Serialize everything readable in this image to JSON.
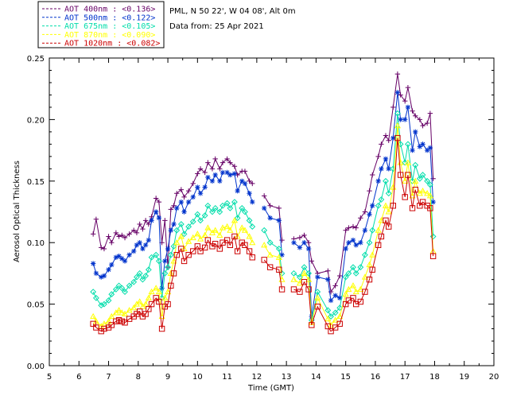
{
  "chart_data": {
    "type": "line",
    "xlabel": "Time (GMT)",
    "ylabel": "Aerosol Optical Thickness",
    "xlim": [
      5,
      20
    ],
    "ylim": [
      0.0,
      0.25
    ],
    "xticks": [
      "5",
      "6",
      "7",
      "8",
      "9",
      "10",
      "11",
      "12",
      "13",
      "14",
      "15",
      "16",
      "17",
      "18",
      "19",
      "20"
    ],
    "yticks": [
      "0.00",
      "0.05",
      "0.10",
      "0.15",
      "0.20",
      "0.25"
    ],
    "site_info": "PML, N 50 22', W 04 08', Alt 0m",
    "date_info": "Data from: 25 Apr 2021",
    "series": [
      {
        "name": "AOT  400nm",
        "legend": "AOT  400nm : <0.136>",
        "color": "#660066",
        "marker": "plus",
        "x": [
          6.48,
          6.58,
          6.75,
          6.85,
          7.0,
          7.1,
          7.25,
          7.35,
          7.45,
          7.55,
          7.7,
          7.85,
          7.95,
          8.05,
          8.15,
          8.25,
          8.35,
          8.45,
          8.6,
          8.7,
          8.8,
          8.9,
          9.0,
          9.1,
          9.2,
          9.3,
          9.45,
          9.55,
          9.7,
          9.85,
          10.0,
          10.1,
          10.25,
          10.35,
          10.5,
          10.6,
          10.75,
          10.85,
          11.0,
          11.1,
          11.25,
          11.35,
          11.5,
          11.6,
          11.75,
          11.85,
          12.25,
          12.45,
          12.75,
          12.85,
          13.25,
          13.45,
          13.6,
          13.75,
          13.85,
          14.05,
          14.4,
          14.5,
          14.65,
          14.8,
          15.0,
          15.1,
          15.25,
          15.35,
          15.5,
          15.65,
          15.8,
          15.9,
          16.1,
          16.2,
          16.35,
          16.45,
          16.6,
          16.75,
          16.85,
          17.0,
          17.1,
          17.25,
          17.35,
          17.5,
          17.6,
          17.75,
          17.85,
          17.95
        ],
        "y": [
          0.107,
          0.119,
          0.096,
          0.095,
          0.105,
          0.1,
          0.108,
          0.105,
          0.106,
          0.104,
          0.107,
          0.11,
          0.108,
          0.115,
          0.111,
          0.118,
          0.115,
          0.121,
          0.136,
          0.133,
          0.1,
          0.118,
          0.08,
          0.127,
          0.13,
          0.14,
          0.143,
          0.137,
          0.142,
          0.148,
          0.156,
          0.16,
          0.157,
          0.165,
          0.16,
          0.168,
          0.16,
          0.165,
          0.168,
          0.165,
          0.162,
          0.155,
          0.158,
          0.158,
          0.15,
          0.148,
          0.138,
          0.13,
          0.128,
          0.102,
          0.103,
          0.104,
          0.106,
          0.1,
          0.085,
          0.075,
          0.077,
          0.06,
          0.065,
          0.073,
          0.11,
          0.112,
          0.113,
          0.112,
          0.12,
          0.125,
          0.142,
          0.155,
          0.17,
          0.18,
          0.187,
          0.183,
          0.21,
          0.237,
          0.22,
          0.215,
          0.226,
          0.207,
          0.203,
          0.2,
          0.195,
          0.197,
          0.205,
          0.152
        ]
      },
      {
        "name": "AOT  500nm",
        "legend": "AOT  500nm : <0.122>",
        "color": "#0033cc",
        "marker": "star",
        "x": [
          6.48,
          6.58,
          6.75,
          6.85,
          7.0,
          7.1,
          7.25,
          7.35,
          7.45,
          7.55,
          7.7,
          7.85,
          7.95,
          8.05,
          8.15,
          8.25,
          8.35,
          8.45,
          8.6,
          8.7,
          8.8,
          8.9,
          9.0,
          9.1,
          9.2,
          9.3,
          9.45,
          9.55,
          9.7,
          9.85,
          10.0,
          10.1,
          10.25,
          10.35,
          10.5,
          10.6,
          10.75,
          10.85,
          11.0,
          11.1,
          11.25,
          11.35,
          11.5,
          11.6,
          11.75,
          11.85,
          12.25,
          12.45,
          12.75,
          12.85,
          13.25,
          13.45,
          13.6,
          13.75,
          13.85,
          14.05,
          14.4,
          14.5,
          14.65,
          14.8,
          15.0,
          15.1,
          15.25,
          15.35,
          15.5,
          15.65,
          15.8,
          15.9,
          16.1,
          16.2,
          16.35,
          16.45,
          16.6,
          16.75,
          16.85,
          17.0,
          17.1,
          17.25,
          17.35,
          17.5,
          17.6,
          17.75,
          17.85,
          17.95
        ],
        "y": [
          0.083,
          0.075,
          0.072,
          0.073,
          0.078,
          0.082,
          0.088,
          0.089,
          0.087,
          0.085,
          0.09,
          0.093,
          0.098,
          0.1,
          0.095,
          0.098,
          0.102,
          0.118,
          0.125,
          0.12,
          0.063,
          0.085,
          0.095,
          0.11,
          0.115,
          0.128,
          0.133,
          0.125,
          0.133,
          0.137,
          0.145,
          0.14,
          0.145,
          0.153,
          0.15,
          0.155,
          0.15,
          0.157,
          0.157,
          0.155,
          0.156,
          0.142,
          0.15,
          0.148,
          0.14,
          0.133,
          0.128,
          0.12,
          0.118,
          0.09,
          0.1,
          0.096,
          0.1,
          0.095,
          0.04,
          0.072,
          0.07,
          0.053,
          0.057,
          0.055,
          0.095,
          0.1,
          0.102,
          0.098,
          0.1,
          0.11,
          0.123,
          0.13,
          0.15,
          0.16,
          0.168,
          0.16,
          0.185,
          0.222,
          0.2,
          0.2,
          0.21,
          0.175,
          0.19,
          0.178,
          0.18,
          0.175,
          0.177,
          0.133
        ]
      },
      {
        "name": "AOT  675nm",
        "legend": "AOT  675nm : <0.105>",
        "color": "#00ddaa",
        "marker": "diamond",
        "x": [
          6.48,
          6.58,
          6.75,
          6.85,
          7.0,
          7.1,
          7.25,
          7.35,
          7.45,
          7.55,
          7.7,
          7.85,
          7.95,
          8.05,
          8.15,
          8.25,
          8.35,
          8.45,
          8.6,
          8.7,
          8.8,
          8.9,
          9.0,
          9.1,
          9.2,
          9.3,
          9.45,
          9.55,
          9.7,
          9.85,
          10.0,
          10.1,
          10.25,
          10.35,
          10.5,
          10.6,
          10.75,
          10.85,
          11.0,
          11.1,
          11.25,
          11.35,
          11.5,
          11.6,
          11.75,
          11.85,
          12.25,
          12.45,
          12.75,
          12.85,
          13.25,
          13.45,
          13.6,
          13.75,
          13.85,
          14.05,
          14.4,
          14.5,
          14.65,
          14.8,
          15.0,
          15.1,
          15.25,
          15.35,
          15.5,
          15.65,
          15.8,
          15.9,
          16.1,
          16.2,
          16.35,
          16.45,
          16.6,
          16.75,
          16.85,
          17.0,
          17.1,
          17.25,
          17.35,
          17.5,
          17.6,
          17.75,
          17.85,
          17.95
        ],
        "y": [
          0.06,
          0.055,
          0.049,
          0.05,
          0.053,
          0.058,
          0.062,
          0.065,
          0.063,
          0.06,
          0.065,
          0.068,
          0.072,
          0.075,
          0.07,
          0.073,
          0.078,
          0.088,
          0.09,
          0.085,
          0.055,
          0.075,
          0.08,
          0.09,
          0.097,
          0.11,
          0.115,
          0.107,
          0.113,
          0.117,
          0.123,
          0.118,
          0.122,
          0.13,
          0.125,
          0.128,
          0.125,
          0.13,
          0.132,
          0.128,
          0.133,
          0.12,
          0.128,
          0.125,
          0.118,
          0.113,
          0.11,
          0.1,
          0.095,
          0.075,
          0.075,
          0.072,
          0.08,
          0.075,
          0.037,
          0.06,
          0.045,
          0.04,
          0.043,
          0.047,
          0.072,
          0.075,
          0.08,
          0.075,
          0.08,
          0.09,
          0.1,
          0.11,
          0.13,
          0.135,
          0.15,
          0.14,
          0.16,
          0.205,
          0.18,
          0.165,
          0.18,
          0.15,
          0.163,
          0.152,
          0.155,
          0.15,
          0.147,
          0.105
        ]
      },
      {
        "name": "AOT  870nm",
        "legend": "AOT  870nm : <0.090>",
        "color": "#ffff00",
        "marker": "triangle",
        "x": [
          6.48,
          6.58,
          6.75,
          6.85,
          7.0,
          7.1,
          7.25,
          7.35,
          7.45,
          7.55,
          7.7,
          7.85,
          7.95,
          8.05,
          8.15,
          8.25,
          8.35,
          8.45,
          8.6,
          8.7,
          8.8,
          8.9,
          9.0,
          9.1,
          9.2,
          9.3,
          9.45,
          9.55,
          9.7,
          9.85,
          10.0,
          10.1,
          10.25,
          10.35,
          10.5,
          10.6,
          10.75,
          10.85,
          11.0,
          11.1,
          11.25,
          11.35,
          11.5,
          11.6,
          11.75,
          11.85,
          12.25,
          12.45,
          12.75,
          12.85,
          13.25,
          13.45,
          13.6,
          13.75,
          13.85,
          14.05,
          14.4,
          14.5,
          14.65,
          14.8,
          15.0,
          15.1,
          15.25,
          15.35,
          15.5,
          15.65,
          15.8,
          15.9,
          16.1,
          16.2,
          16.35,
          16.45,
          16.6,
          16.75,
          16.85,
          17.0,
          17.1,
          17.25,
          17.35,
          17.5,
          17.6,
          17.75,
          17.85,
          17.95
        ],
        "y": [
          0.04,
          0.036,
          0.032,
          0.034,
          0.036,
          0.04,
          0.043,
          0.045,
          0.043,
          0.042,
          0.045,
          0.047,
          0.05,
          0.052,
          0.048,
          0.05,
          0.055,
          0.06,
          0.063,
          0.06,
          0.04,
          0.055,
          0.06,
          0.075,
          0.085,
          0.1,
          0.105,
          0.095,
          0.101,
          0.104,
          0.107,
          0.103,
          0.106,
          0.112,
          0.108,
          0.11,
          0.106,
          0.112,
          0.113,
          0.11,
          0.118,
          0.105,
          0.112,
          0.11,
          0.105,
          0.1,
          0.098,
          0.09,
          0.088,
          0.07,
          0.07,
          0.067,
          0.075,
          0.07,
          0.035,
          0.055,
          0.038,
          0.033,
          0.037,
          0.04,
          0.058,
          0.062,
          0.065,
          0.06,
          0.062,
          0.072,
          0.082,
          0.09,
          0.11,
          0.118,
          0.13,
          0.125,
          0.145,
          0.195,
          0.165,
          0.15,
          0.165,
          0.138,
          0.15,
          0.14,
          0.142,
          0.14,
          0.138,
          0.093
        ]
      },
      {
        "name": "AOT 1020nm",
        "legend": "AOT 1020nm : <0.082>",
        "color": "#cc0000",
        "marker": "square",
        "x": [
          6.48,
          6.58,
          6.75,
          6.85,
          7.0,
          7.1,
          7.25,
          7.35,
          7.45,
          7.55,
          7.7,
          7.85,
          7.95,
          8.05,
          8.15,
          8.25,
          8.35,
          8.45,
          8.6,
          8.7,
          8.8,
          8.9,
          9.0,
          9.1,
          9.2,
          9.3,
          9.45,
          9.55,
          9.7,
          9.85,
          10.0,
          10.1,
          10.25,
          10.35,
          10.5,
          10.6,
          10.75,
          10.85,
          11.0,
          11.1,
          11.25,
          11.35,
          11.5,
          11.6,
          11.75,
          11.85,
          12.25,
          12.45,
          12.75,
          12.85,
          13.25,
          13.45,
          13.6,
          13.75,
          13.85,
          14.05,
          14.4,
          14.5,
          14.65,
          14.8,
          15.0,
          15.1,
          15.25,
          15.35,
          15.5,
          15.65,
          15.8,
          15.9,
          16.1,
          16.2,
          16.35,
          16.45,
          16.6,
          16.75,
          16.85,
          17.0,
          17.1,
          17.25,
          17.35,
          17.5,
          17.6,
          17.75,
          17.85,
          17.95
        ],
        "y": [
          0.034,
          0.031,
          0.028,
          0.03,
          0.031,
          0.033,
          0.036,
          0.037,
          0.036,
          0.035,
          0.038,
          0.04,
          0.042,
          0.044,
          0.04,
          0.042,
          0.046,
          0.05,
          0.055,
          0.052,
          0.03,
          0.048,
          0.05,
          0.065,
          0.075,
          0.09,
          0.095,
          0.085,
          0.09,
          0.093,
          0.097,
          0.093,
          0.096,
          0.102,
          0.097,
          0.099,
          0.095,
          0.1,
          0.102,
          0.098,
          0.105,
          0.093,
          0.1,
          0.098,
          0.093,
          0.088,
          0.086,
          0.08,
          0.078,
          0.062,
          0.062,
          0.06,
          0.068,
          0.062,
          0.033,
          0.048,
          0.032,
          0.028,
          0.031,
          0.034,
          0.05,
          0.053,
          0.055,
          0.05,
          0.052,
          0.06,
          0.07,
          0.078,
          0.098,
          0.105,
          0.118,
          0.113,
          0.13,
          0.185,
          0.155,
          0.137,
          0.155,
          0.128,
          0.143,
          0.13,
          0.133,
          0.13,
          0.128,
          0.089
        ]
      }
    ]
  }
}
